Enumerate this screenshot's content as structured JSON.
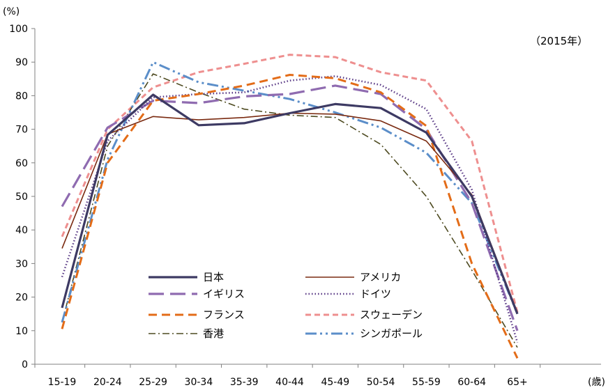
{
  "chart_data": {
    "type": "line",
    "ylabel": "(%)",
    "xlabel_unit": "(歳)",
    "annotation": "（2015年）",
    "categories": [
      "15-19",
      "20-24",
      "25-29",
      "30-34",
      "35-39",
      "40-44",
      "45-49",
      "50-54",
      "55-59",
      "60-64",
      "65+"
    ],
    "ylim": [
      0,
      100
    ],
    "yticks": [
      0,
      10,
      20,
      30,
      40,
      50,
      60,
      70,
      80,
      90,
      100
    ],
    "grid": false,
    "legend_position": "lower-center",
    "series": [
      {
        "name": "日本",
        "color": "#3d3a63",
        "style": "solid-thick",
        "values": [
          16.8,
          68.3,
          80.3,
          71.2,
          71.8,
          74.8,
          77.5,
          76.3,
          69.0,
          50.0,
          15.0
        ]
      },
      {
        "name": "アメリカ",
        "color": "#7a2a10",
        "style": "solid-thin",
        "values": [
          34.5,
          68.5,
          73.8,
          72.8,
          73.5,
          74.8,
          74.5,
          72.5,
          66.5,
          50.5,
          15.5
        ]
      },
      {
        "name": "イギリス",
        "color": "#8f6bb0",
        "style": "long-dash",
        "values": [
          47.0,
          70.5,
          78.5,
          77.8,
          79.8,
          80.5,
          83.0,
          80.5,
          70.0,
          48.0,
          10.0
        ]
      },
      {
        "name": "ドイツ",
        "color": "#5a3a86",
        "style": "dotted",
        "values": [
          26.0,
          66.5,
          79.5,
          80.5,
          81.0,
          84.5,
          85.8,
          83.2,
          76.0,
          52.0,
          6.5
        ]
      },
      {
        "name": "フランス",
        "color": "#e36c18",
        "style": "dash",
        "values": [
          10.5,
          60.0,
          78.5,
          80.5,
          83.0,
          86.2,
          85.2,
          81.0,
          71.0,
          30.0,
          1.8
        ]
      },
      {
        "name": "スウェーデン",
        "color": "#ee8f8f",
        "style": "dash-short",
        "values": [
          38.0,
          70.0,
          82.5,
          87.0,
          89.5,
          92.2,
          91.5,
          87.0,
          84.5,
          66.5,
          15.5
        ]
      },
      {
        "name": "香港",
        "color": "#4d4a20",
        "style": "dash-dot",
        "values": [
          12.5,
          65.0,
          86.5,
          81.0,
          76.0,
          74.2,
          73.5,
          65.5,
          50.0,
          28.0,
          5.0
        ]
      },
      {
        "name": "シンガポール",
        "color": "#5b8ec9",
        "style": "dash-dot-dot",
        "values": [
          12.5,
          61.0,
          90.0,
          84.0,
          81.5,
          79.0,
          75.0,
          70.5,
          63.0,
          48.0,
          15.0
        ]
      }
    ]
  }
}
